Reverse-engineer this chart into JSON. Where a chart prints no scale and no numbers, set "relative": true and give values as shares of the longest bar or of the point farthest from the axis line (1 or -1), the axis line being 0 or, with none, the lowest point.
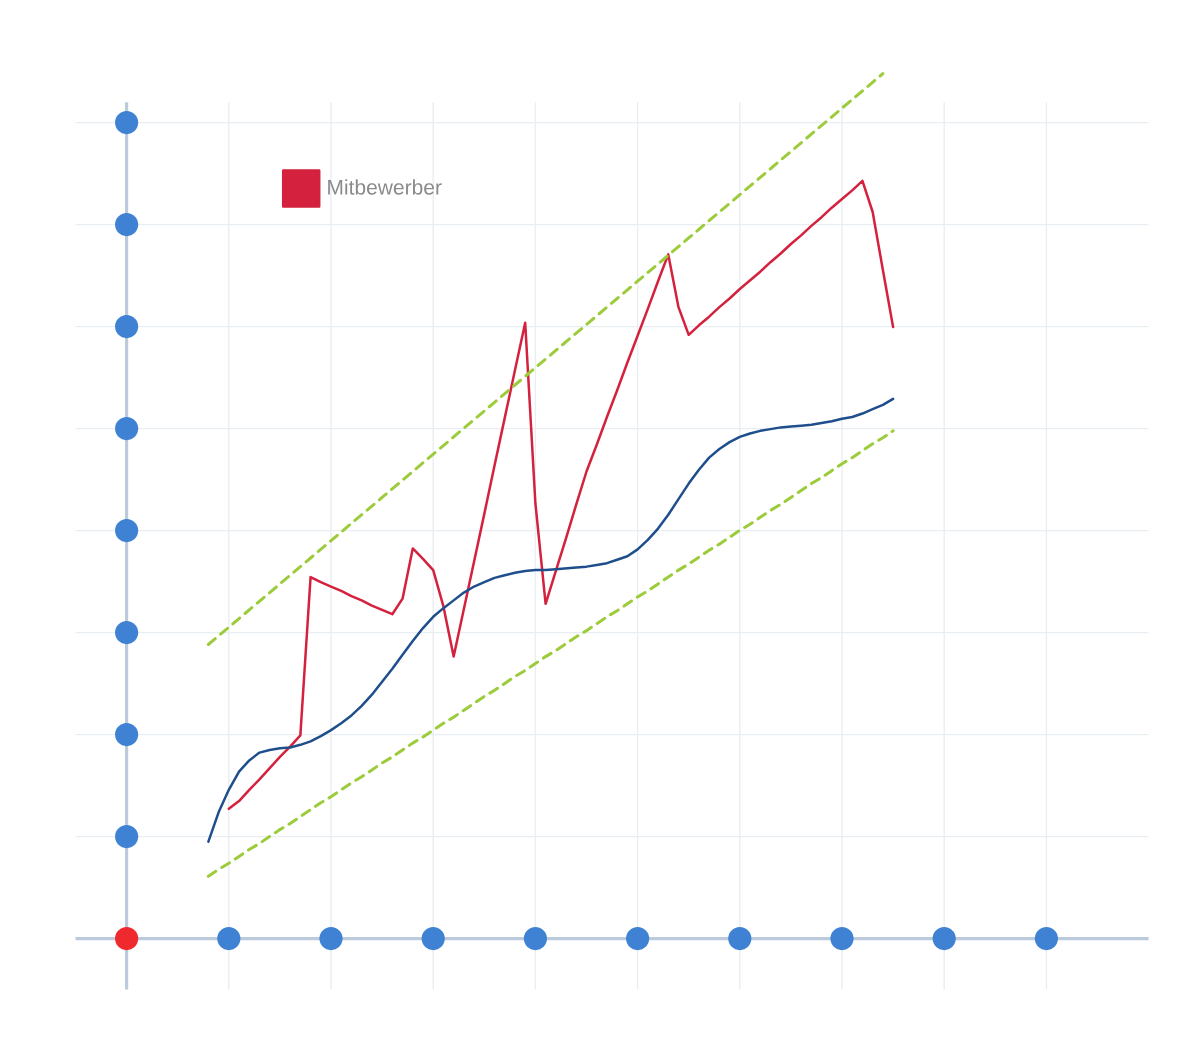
{
  "chart_data": {
    "type": "line",
    "relative": true,
    "grid": true,
    "legend": "top left",
    "marker": "none",
    "categories": [
      null,
      null,
      null,
      null,
      null,
      null,
      null,
      null,
      null,
      null,
      null,
      null,
      null,
      null,
      null,
      null,
      null,
      null,
      null,
      null,
      null,
      null,
      null,
      null,
      null,
      null,
      null,
      null,
      null,
      null,
      null,
      null,
      null,
      null,
      null,
      null,
      null,
      null,
      null,
      null,
      null,
      null,
      null,
      null,
      null,
      null,
      null,
      null,
      null,
      null,
      null,
      null,
      null,
      null,
      null,
      null,
      null,
      null,
      null,
      null,
      null,
      null,
      null,
      null,
      null,
      null,
      null,
      null,
      null,
      null,
      null,
      null,
      null,
      null,
      null,
      null,
      null,
      null,
      null,
      null,
      null,
      null,
      null,
      null,
      null,
      null,
      null,
      null,
      null,
      null,
      null
    ],
    "series": [
      {
        "name": "Mitbewerber",
        "color": "#d4213d",
        "values": [
          null,
          null,
          null,
          null,
          null,
          null,
          null,
          null,
          null,
          null,
          0.15,
          0.159,
          0.172,
          0.184,
          0.197,
          0.21,
          0.222,
          0.235,
          0.418,
          0.412,
          0.407,
          0.402,
          0.396,
          0.391,
          0.385,
          0.38,
          0.375,
          0.393,
          0.451,
          0.439,
          0.426,
          0.384,
          0.326,
          0.381,
          0.436,
          0.491,
          0.547,
          0.602,
          0.657,
          0.712,
          0.503,
          0.387,
          0.425,
          0.463,
          0.502,
          0.54,
          0.571,
          0.603,
          0.634,
          0.666,
          0.697,
          0.728,
          0.76,
          0.791,
          0.73,
          0.698,
          0.709,
          0.719,
          0.73,
          0.74,
          0.751,
          0.761,
          0.771,
          0.782,
          0.792,
          0.803,
          0.813,
          0.824,
          0.834,
          0.845,
          0.855,
          0.865,
          0.876,
          0.84,
          0.773,
          0.707,
          null,
          null,
          null,
          null,
          null,
          null,
          null,
          null,
          null,
          null,
          null,
          null,
          null,
          null,
          null
        ]
      },
      {
        "color": "#1f4e8c",
        "values": [
          null,
          null,
          null,
          null,
          null,
          null,
          null,
          null,
          0.112,
          0.146,
          0.172,
          0.193,
          0.206,
          0.215,
          0.218,
          0.22,
          0.221,
          0.224,
          0.228,
          0.234,
          0.241,
          0.249,
          0.258,
          0.269,
          0.282,
          0.297,
          0.312,
          0.328,
          0.344,
          0.359,
          0.372,
          0.382,
          0.391,
          0.4,
          0.407,
          0.412,
          0.417,
          0.42,
          0.423,
          0.425,
          0.426,
          0.426,
          0.427,
          0.428,
          0.429,
          0.43,
          0.432,
          0.434,
          0.438,
          0.442,
          0.45,
          0.461,
          0.474,
          0.49,
          0.508,
          0.526,
          0.542,
          0.556,
          0.566,
          0.574,
          0.58,
          0.584,
          0.587,
          0.589,
          0.591,
          0.592,
          0.593,
          0.594,
          0.596,
          0.598,
          0.601,
          0.603,
          0.607,
          0.612,
          0.617,
          0.624,
          null,
          null,
          null,
          null,
          null,
          null,
          null,
          null,
          null,
          null,
          null,
          null,
          null,
          null,
          null
        ]
      },
      {
        "color": "#9ccc3c",
        "line_style": "dashed",
        "values": [
          null,
          null,
          null,
          null,
          null,
          null,
          null,
          null,
          0.34,
          0.35,
          0.36,
          0.37,
          0.38,
          0.39,
          0.4,
          0.41,
          0.42,
          0.43,
          0.44,
          0.45,
          0.46,
          0.47,
          0.48,
          0.49,
          0.5,
          0.51,
          0.52,
          0.53,
          0.54,
          0.55,
          0.56,
          0.57,
          0.58,
          0.59,
          0.6,
          0.61,
          0.62,
          0.63,
          0.64,
          0.65,
          0.66,
          0.67,
          0.68,
          0.69,
          0.7,
          0.71,
          0.72,
          0.73,
          0.74,
          0.75,
          0.76,
          0.77,
          0.78,
          0.79,
          0.8,
          0.81,
          0.82,
          0.83,
          0.84,
          0.85,
          0.86,
          0.87,
          0.88,
          0.89,
          0.9,
          0.91,
          0.92,
          0.93,
          0.94,
          0.95,
          0.96,
          0.97,
          0.98,
          0.99,
          1.0,
          null,
          null,
          null,
          null,
          null,
          null,
          null,
          null,
          null,
          null,
          null,
          null,
          null,
          null,
          null,
          null
        ]
      },
      {
        "color": "#9ccc3c",
        "line_style": "dashed",
        "values": [
          null,
          null,
          null,
          null,
          null,
          null,
          null,
          null,
          0.072,
          0.08,
          0.087,
          0.095,
          0.103,
          0.11,
          0.118,
          0.126,
          0.133,
          0.141,
          0.149,
          0.157,
          0.164,
          0.172,
          0.18,
          0.187,
          0.195,
          0.203,
          0.21,
          0.218,
          0.226,
          0.233,
          0.241,
          0.249,
          0.256,
          0.264,
          0.272,
          0.28,
          0.287,
          0.295,
          0.303,
          0.31,
          0.318,
          0.326,
          0.333,
          0.341,
          0.349,
          0.356,
          0.364,
          0.372,
          0.379,
          0.387,
          0.395,
          0.402,
          0.41,
          0.418,
          0.426,
          0.433,
          0.441,
          0.449,
          0.456,
          0.464,
          0.472,
          0.479,
          0.487,
          0.495,
          0.502,
          0.51,
          0.518,
          0.526,
          0.533,
          0.541,
          0.549,
          0.556,
          0.564,
          0.572,
          0.579,
          0.587,
          null,
          null,
          null,
          null,
          null,
          null,
          null,
          null,
          null,
          null,
          null,
          null,
          null,
          null,
          null
        ]
      }
    ]
  }
}
